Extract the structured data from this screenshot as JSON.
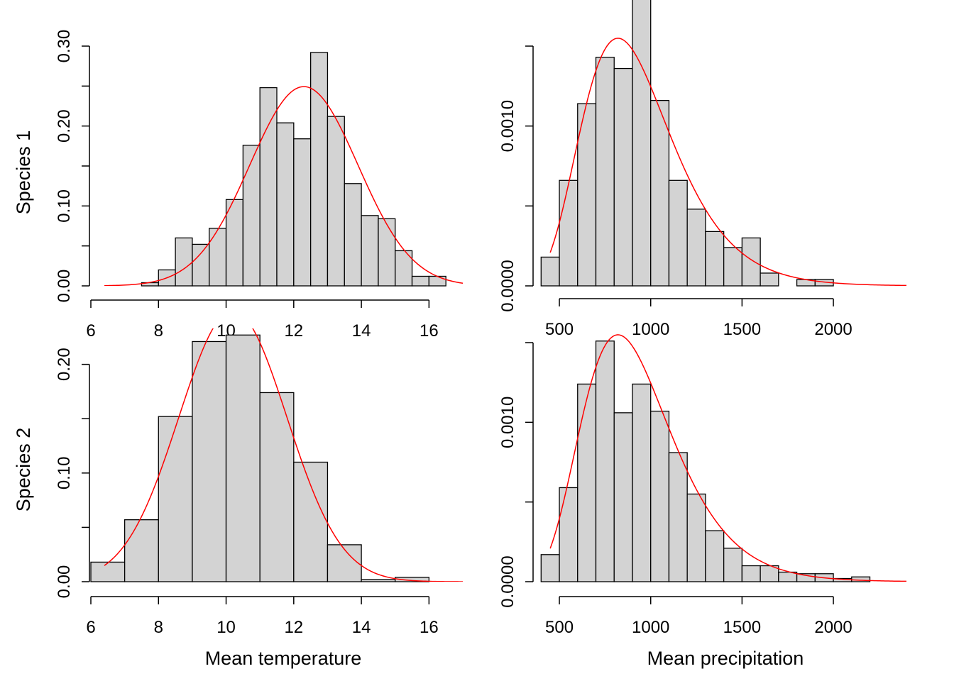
{
  "row_labels": [
    "Species 1",
    "Species 2"
  ],
  "col_labels": [
    "Mean temperature",
    "Mean precipitation"
  ],
  "colors": {
    "bar_fill": "#d3d3d3",
    "bar_stroke": "#000000",
    "curve": "#ff0000"
  },
  "chart_data": [
    {
      "type": "bar",
      "histogram": true,
      "row": "Species 1",
      "xlabel": "",
      "ylabel": "Species 1",
      "xlim": [
        6,
        17
      ],
      "ylim": [
        0,
        0.3
      ],
      "x_ticks": [
        6,
        8,
        10,
        12,
        14,
        16
      ],
      "x_tick_labels": [
        "6",
        "8",
        "10",
        "12",
        "14",
        "16"
      ],
      "y_ticks": [
        0,
        0.05,
        0.1,
        0.15,
        0.2,
        0.25,
        0.3
      ],
      "y_tick_labels": [
        "0.00",
        "",
        "0.10",
        "",
        "0.20",
        "",
        "0.30"
      ],
      "bin_edges": [
        7.5,
        8,
        8.5,
        9,
        9.5,
        10,
        10.5,
        11,
        11.5,
        12,
        12.5,
        13,
        13.5,
        14,
        14.5,
        15,
        15.5,
        16,
        16.5
      ],
      "values": [
        0.004,
        0.02,
        0.06,
        0.052,
        0.072,
        0.108,
        0.176,
        0.248,
        0.204,
        0.184,
        0.292,
        0.212,
        0.128,
        0.088,
        0.084,
        0.044,
        0.012,
        0.012
      ],
      "curve": {
        "color": "#ff0000",
        "x_range": [
          6.4,
          17
        ],
        "mean": 12.3,
        "sd": 1.6,
        "scale": 1.0
      }
    },
    {
      "type": "bar",
      "histogram": true,
      "row": "Species 1",
      "xlabel": "",
      "ylabel": "",
      "xlim": [
        360,
        2400
      ],
      "ylim": [
        0,
        0.0015
      ],
      "x_ticks": [
        500,
        1000,
        1500,
        2000
      ],
      "x_tick_labels": [
        "500",
        "1000",
        "1500",
        "2000"
      ],
      "y_ticks": [
        0,
        0.0005,
        0.001,
        0.0015
      ],
      "y_tick_labels": [
        "0.0000",
        "",
        "0.0010",
        ""
      ],
      "bin_edges": [
        400,
        500,
        600,
        700,
        800,
        900,
        1000,
        1100,
        1200,
        1300,
        1400,
        1500,
        1600,
        1700,
        1800,
        1900,
        2000
      ],
      "values": [
        0.00018,
        0.00066,
        0.00114,
        0.00143,
        0.00136,
        0.0018,
        0.00116,
        0.00066,
        0.00048,
        0.00034,
        0.00024,
        0.0003,
        8e-05,
        0.0,
        4e-05,
        4e-05
      ],
      "curve": {
        "color": "#ff0000",
        "x_range": [
          450,
          2400
        ],
        "meanlog": 6.8,
        "sdlog": 0.3,
        "scale": 1.0
      }
    },
    {
      "type": "bar",
      "histogram": true,
      "row": "Species 2",
      "xlabel": "Mean temperature",
      "ylabel": "Species 2",
      "xlim": [
        6,
        17
      ],
      "ylim": [
        0,
        0.22
      ],
      "x_ticks": [
        6,
        8,
        10,
        12,
        14,
        16
      ],
      "x_tick_labels": [
        "6",
        "8",
        "10",
        "12",
        "14",
        "16"
      ],
      "y_ticks": [
        0,
        0.05,
        0.1,
        0.15,
        0.2
      ],
      "y_tick_labels": [
        "0.00",
        "",
        "0.10",
        "",
        "0.20"
      ],
      "bin_edges": [
        6,
        7,
        8,
        9,
        10,
        11,
        12,
        13,
        14,
        15,
        16
      ],
      "values": [
        0.018,
        0.057,
        0.152,
        0.221,
        0.227,
        0.174,
        0.11,
        0.034,
        0.002,
        0.004
      ],
      "curve": {
        "color": "#ff0000",
        "x_range": [
          6.4,
          17
        ],
        "mean": 10.2,
        "sd": 1.6,
        "scale": 1.0
      }
    },
    {
      "type": "bar",
      "histogram": true,
      "row": "Species 2",
      "xlabel": "Mean precipitation",
      "ylabel": "",
      "xlim": [
        360,
        2400
      ],
      "ylim": [
        0,
        0.0015
      ],
      "x_ticks": [
        500,
        1000,
        1500,
        2000
      ],
      "x_tick_labels": [
        "500",
        "1000",
        "1500",
        "2000"
      ],
      "y_ticks": [
        0,
        0.0005,
        0.001,
        0.0015
      ],
      "y_tick_labels": [
        "0.0000",
        "",
        "0.0010",
        ""
      ],
      "bin_edges": [
        400,
        500,
        600,
        700,
        800,
        900,
        1000,
        1100,
        1200,
        1300,
        1400,
        1500,
        1600,
        1700,
        1800,
        1900,
        2000,
        2100,
        2200
      ],
      "values": [
        0.00017,
        0.00059,
        0.00124,
        0.00151,
        0.00106,
        0.00124,
        0.00107,
        0.00081,
        0.00055,
        0.00032,
        0.00021,
        0.0001,
        0.0001,
        6e-05,
        5e-05,
        5e-05,
        2e-05,
        3e-05
      ],
      "curve": {
        "color": "#ff0000",
        "x_range": [
          450,
          2400
        ],
        "meanlog": 6.8,
        "sdlog": 0.3,
        "scale": 1.0
      }
    }
  ]
}
